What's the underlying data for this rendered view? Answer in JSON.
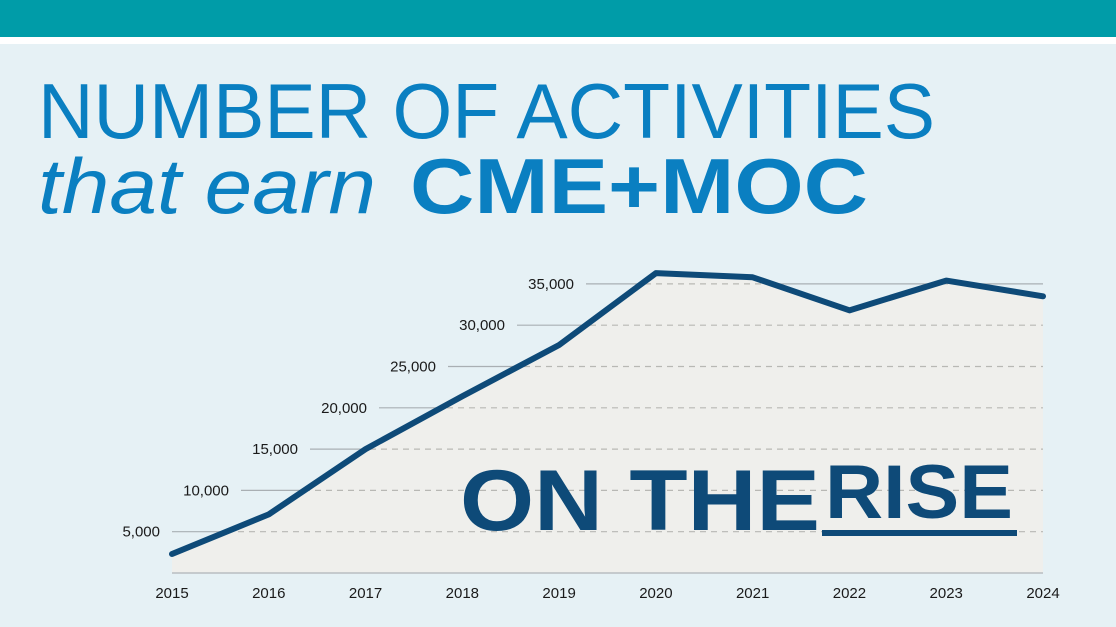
{
  "title": {
    "line1": "NUMBER OF ACTIVITIES",
    "line2_prefix": "that earn",
    "line2_emphasis": "CME+MOC"
  },
  "overlay": {
    "text_plain": "ON THE",
    "text_underlined": "RISE"
  },
  "colors": {
    "top_bar": "#009ca8",
    "background": "#e6f1f5",
    "title": "#0a7fc1",
    "line": "#0e4a78",
    "area": "#efefec",
    "grid": "#a9afb3"
  },
  "chart_data": {
    "type": "area",
    "title": "NUMBER OF ACTIVITIES that earn CME+MOC",
    "xlabel": "",
    "ylabel": "",
    "x": [
      "2015",
      "2016",
      "2017",
      "2018",
      "2019",
      "2020",
      "2021",
      "2022",
      "2023",
      "2024"
    ],
    "values": [
      2300,
      7100,
      15000,
      21400,
      27600,
      36300,
      35800,
      31800,
      35400,
      33500
    ],
    "ylim": [
      0,
      40000
    ],
    "yticks": [
      5000,
      10000,
      15000,
      20000,
      25000,
      30000,
      35000
    ],
    "ytick_labels": [
      "5,000",
      "10,000",
      "15,000",
      "20,000",
      "25,000",
      "30,000",
      "35,000"
    ],
    "grid": true,
    "annotation": "ON THE RISE"
  }
}
